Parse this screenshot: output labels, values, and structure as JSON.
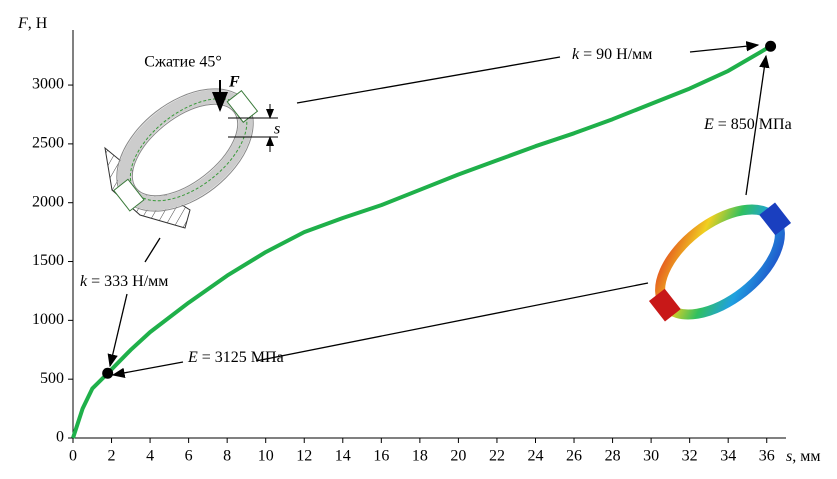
{
  "chart_data": {
    "type": "line",
    "y_label": {
      "symbol": "F",
      "text": ", Н"
    },
    "x_label": {
      "symbol": "s",
      "text": ", мм"
    },
    "x": [
      0,
      0.5,
      1,
      1.8,
      3,
      4,
      6,
      8,
      10,
      12,
      14,
      16,
      18,
      20,
      22,
      24,
      26,
      28,
      30,
      32,
      34,
      36.2
    ],
    "series": [
      {
        "color": "#1fb04a",
        "values": [
          0,
          250,
          420,
          550,
          750,
          900,
          1150,
          1380,
          1580,
          1750,
          1870,
          1980,
          2110,
          2240,
          2360,
          2480,
          2590,
          2710,
          2840,
          2970,
          3120,
          3330
        ]
      }
    ],
    "markers": [
      {
        "x": 1.8,
        "y": 550
      },
      {
        "x": 36.2,
        "y": 3330
      }
    ],
    "xlim": [
      0,
      37
    ],
    "ylim": [
      0,
      3400
    ],
    "xticks": [
      0,
      2,
      4,
      6,
      8,
      10,
      12,
      14,
      16,
      18,
      20,
      22,
      24,
      26,
      28,
      30,
      32,
      34,
      36
    ],
    "yticks": [
      0,
      500,
      1000,
      1500,
      2000,
      2500,
      3000
    ],
    "annotations": [
      {
        "symbol": "k",
        "text": " = 90 Н/мм"
      },
      {
        "symbol": "E",
        "text": " = 850 МПа"
      },
      {
        "symbol": "k",
        "text": " = 333 Н/мм"
      },
      {
        "symbol": "E",
        "text": " = 3125 МПа"
      }
    ],
    "inset": {
      "title": "Сжатие 45°",
      "force": "F",
      "displacement": "s"
    }
  }
}
